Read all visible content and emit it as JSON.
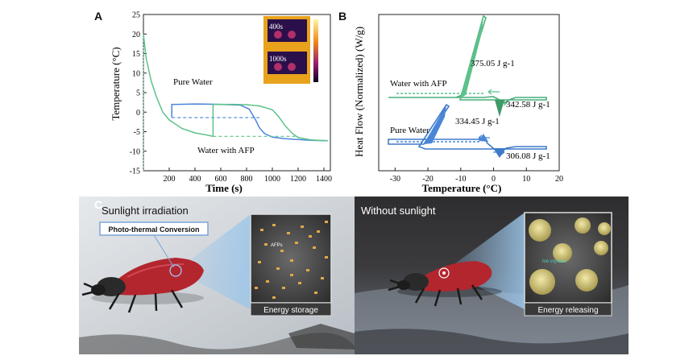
{
  "panels": {
    "a": {
      "letter": "A"
    },
    "b": {
      "letter": "B"
    },
    "c": {
      "letter": "C",
      "left_title": "Sunlight irradiation",
      "left_callout": "Photo-thermal Conversion",
      "left_inset_label": "Energy storage",
      "left_inset_tag": "AFPs",
      "right_title": "Without sunlight",
      "right_inset_label": "Energy releasing",
      "right_inset_tag": "Ice crystals"
    }
  },
  "colors": {
    "pure_water": "#4a86d8",
    "water_afp": "#5cc28a",
    "dark_bg": "#333333"
  },
  "chart_data": [
    {
      "type": "line",
      "panel": "A",
      "xlabel": "Time (s)",
      "ylabel": "Temperature (°C)",
      "xlim": [
        0,
        1450
      ],
      "ylim": [
        -15,
        25
      ],
      "xticks": [
        200,
        400,
        600,
        800,
        1000,
        1200,
        1400
      ],
      "yticks": [
        -15,
        -10,
        -5,
        0,
        5,
        10,
        15,
        20,
        25
      ],
      "inset_labels": [
        "400s",
        "1000s"
      ],
      "series": [
        {
          "name": "Pure Water",
          "color": "#4a86d8",
          "x": [
            220,
            220,
            260,
            400,
            600,
            750,
            820,
            870,
            900,
            940,
            1000,
            1100,
            1200,
            1300,
            1430
          ],
          "y": [
            -1.4,
            2.0,
            2.0,
            2.1,
            2.0,
            1.8,
            0.8,
            -2.0,
            -4.0,
            -5.5,
            -6.4,
            -6.8,
            -7.0,
            -7.2,
            -7.3
          ],
          "plateau_dashed": {
            "x": [
              220,
              900
            ],
            "y": [
              -1.4,
              -1.4
            ]
          }
        },
        {
          "name": "Water with AFP",
          "color": "#5cc28a",
          "x": [
            0,
            20,
            60,
            100,
            150,
            200,
            300,
            400,
            500,
            540,
            540,
            560,
            700,
            800,
            900,
            1000,
            1050,
            1100,
            1150,
            1200,
            1300,
            1430
          ],
          "y": [
            20,
            14,
            8,
            4,
            0,
            -2,
            -4.2,
            -5.3,
            -5.9,
            -6.2,
            2.0,
            2.0,
            2.0,
            1.9,
            1.6,
            0.6,
            -1.2,
            -3.5,
            -5.3,
            -6.5,
            -7.1,
            -7.3
          ],
          "plateau_dashed": {
            "x": [
              540,
              1200
            ],
            "y": [
              -6.2,
              -6.2
            ]
          }
        }
      ]
    },
    {
      "type": "line",
      "panel": "B",
      "xlabel": "Temperature (°C)",
      "ylabel": "Heat Flow (Normalized) (W/g)",
      "xlim": [
        -35,
        20
      ],
      "xticks": [
        -30,
        -20,
        -10,
        0,
        10,
        20
      ],
      "annotations": [
        "375.05 J g-1",
        "342.58 J g-1",
        "334.45 J g-1",
        "306.08 J g-1"
      ],
      "series": [
        {
          "name": "Water with AFP",
          "color": "#5cc28a"
        },
        {
          "name": "Pure Water",
          "color": "#4a86d8"
        }
      ]
    }
  ]
}
